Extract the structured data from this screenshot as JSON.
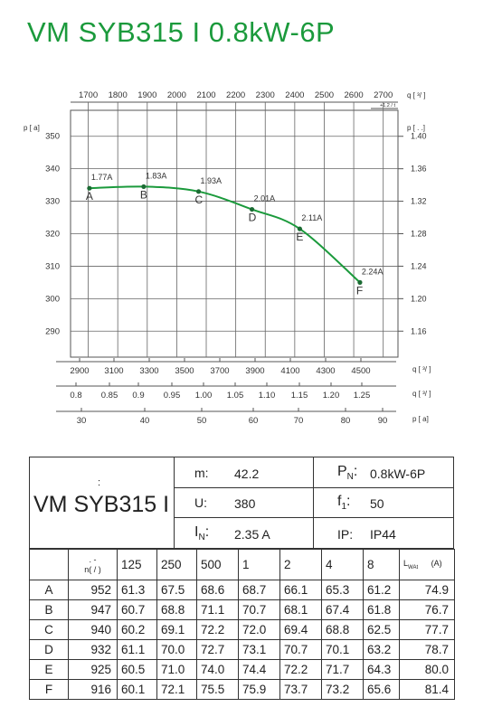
{
  "title": "VM SYB315 I 0.8kW-6P",
  "chart_data": {
    "type": "line",
    "title": "VM SYB315 I 0.8kW-6P",
    "top_axis": {
      "label": "q  [   ³/    ]",
      "sub": "+1.2   /   t",
      "ticks": [
        1700,
        1800,
        1900,
        2000,
        2100,
        2200,
        2300,
        2400,
        2500,
        2600,
        2700
      ],
      "range": [
        1640,
        2750
      ]
    },
    "left_axis": {
      "label": "p  [   a]",
      "ticks": [
        290,
        300,
        310,
        320,
        330,
        340,
        350
      ],
      "range": [
        282,
        358
      ]
    },
    "right_axis": {
      "label": "p  [    .   .]",
      "ticks": [
        "1.40",
        "1.36",
        "1.32",
        "1.28",
        "1.24",
        "1.20",
        "1.16"
      ]
    },
    "bottom_axes": [
      {
        "label": "q  [   ³/    ]",
        "ticks": [
          "2900",
          "3100",
          "3300",
          "3500",
          "3700",
          "3900",
          "4100",
          "4300",
          "4500"
        ]
      },
      {
        "label": "q  [   ³/    ]",
        "ticks": [
          "0.8",
          "0.85",
          "0.9",
          "0.95",
          "1.00",
          "1.05",
          "1.10",
          "1.15",
          "1.20",
          "1.25"
        ]
      },
      {
        "label": "p  [  a]",
        "ticks": [
          "30",
          "40",
          "50",
          "60",
          "70",
          "80",
          "90"
        ]
      }
    ],
    "series": [
      {
        "points": [
          {
            "label": "A",
            "current": "1.77A",
            "x": 1704,
            "y": 334
          },
          {
            "label": "B",
            "current": "1.83A",
            "x": 1888,
            "y": 334.5
          },
          {
            "label": "C",
            "current": "1.93A",
            "x": 2074,
            "y": 333
          },
          {
            "label": "D",
            "current": "2.01A",
            "x": 2255,
            "y": 327.5
          },
          {
            "label": "E",
            "current": "2.11A",
            "x": 2417,
            "y": 321.5
          },
          {
            "label": "F",
            "current": "2.24A",
            "x": 2621,
            "y": 305
          }
        ]
      }
    ],
    "grid": true
  },
  "spec": {
    "model": "VM SYB315 I",
    "colon": ":",
    "m_label": "m:",
    "m_value": "42.2",
    "u_label": "U:",
    "u_value": "380",
    "in_label": "I",
    "in_sub": "N",
    "in_colon": ":",
    "in_value": "2.35  A",
    "pn_label": "P",
    "pn_sub": "N",
    "pn_colon": ":",
    "pn_value": "0.8kW-6P",
    "f_label": "f",
    "f_sub": "1",
    "f_colon": ":",
    "f_value": "50",
    "ip_label": "IP:",
    "ip_value": "IP44"
  },
  "table": {
    "head": {
      "corner_top": ".      -",
      "corner_bottom": "n(   /    )",
      "cols": [
        "125",
        "250",
        "500",
        "1",
        "2",
        "4",
        "8"
      ],
      "last_main": "L",
      "last_sub": "WAt",
      "last_unit": "(A)"
    },
    "rows": [
      {
        "label": "A",
        "n": "952",
        "v": [
          "61.3",
          "67.5",
          "68.6",
          "68.7",
          "66.1",
          "65.3",
          "61.2"
        ],
        "l": "74.9"
      },
      {
        "label": "B",
        "n": "947",
        "v": [
          "60.7",
          "68.8",
          "71.1",
          "70.7",
          "68.1",
          "67.4",
          "61.8"
        ],
        "l": "76.7"
      },
      {
        "label": "C",
        "n": "940",
        "v": [
          "60.2",
          "69.1",
          "72.2",
          "72.0",
          "69.4",
          "68.8",
          "62.5"
        ],
        "l": "77.7"
      },
      {
        "label": "D",
        "n": "932",
        "v": [
          "61.1",
          "70.0",
          "72.7",
          "73.1",
          "70.7",
          "70.1",
          "63.2"
        ],
        "l": "78.7"
      },
      {
        "label": "E",
        "n": "925",
        "v": [
          "60.5",
          "71.0",
          "74.0",
          "74.4",
          "72.2",
          "71.7",
          "64.3"
        ],
        "l": "80.0"
      },
      {
        "label": "F",
        "n": "916",
        "v": [
          "60.1",
          "72.1",
          "75.5",
          "75.9",
          "73.7",
          "73.2",
          "65.6"
        ],
        "l": "81.4"
      }
    ]
  }
}
